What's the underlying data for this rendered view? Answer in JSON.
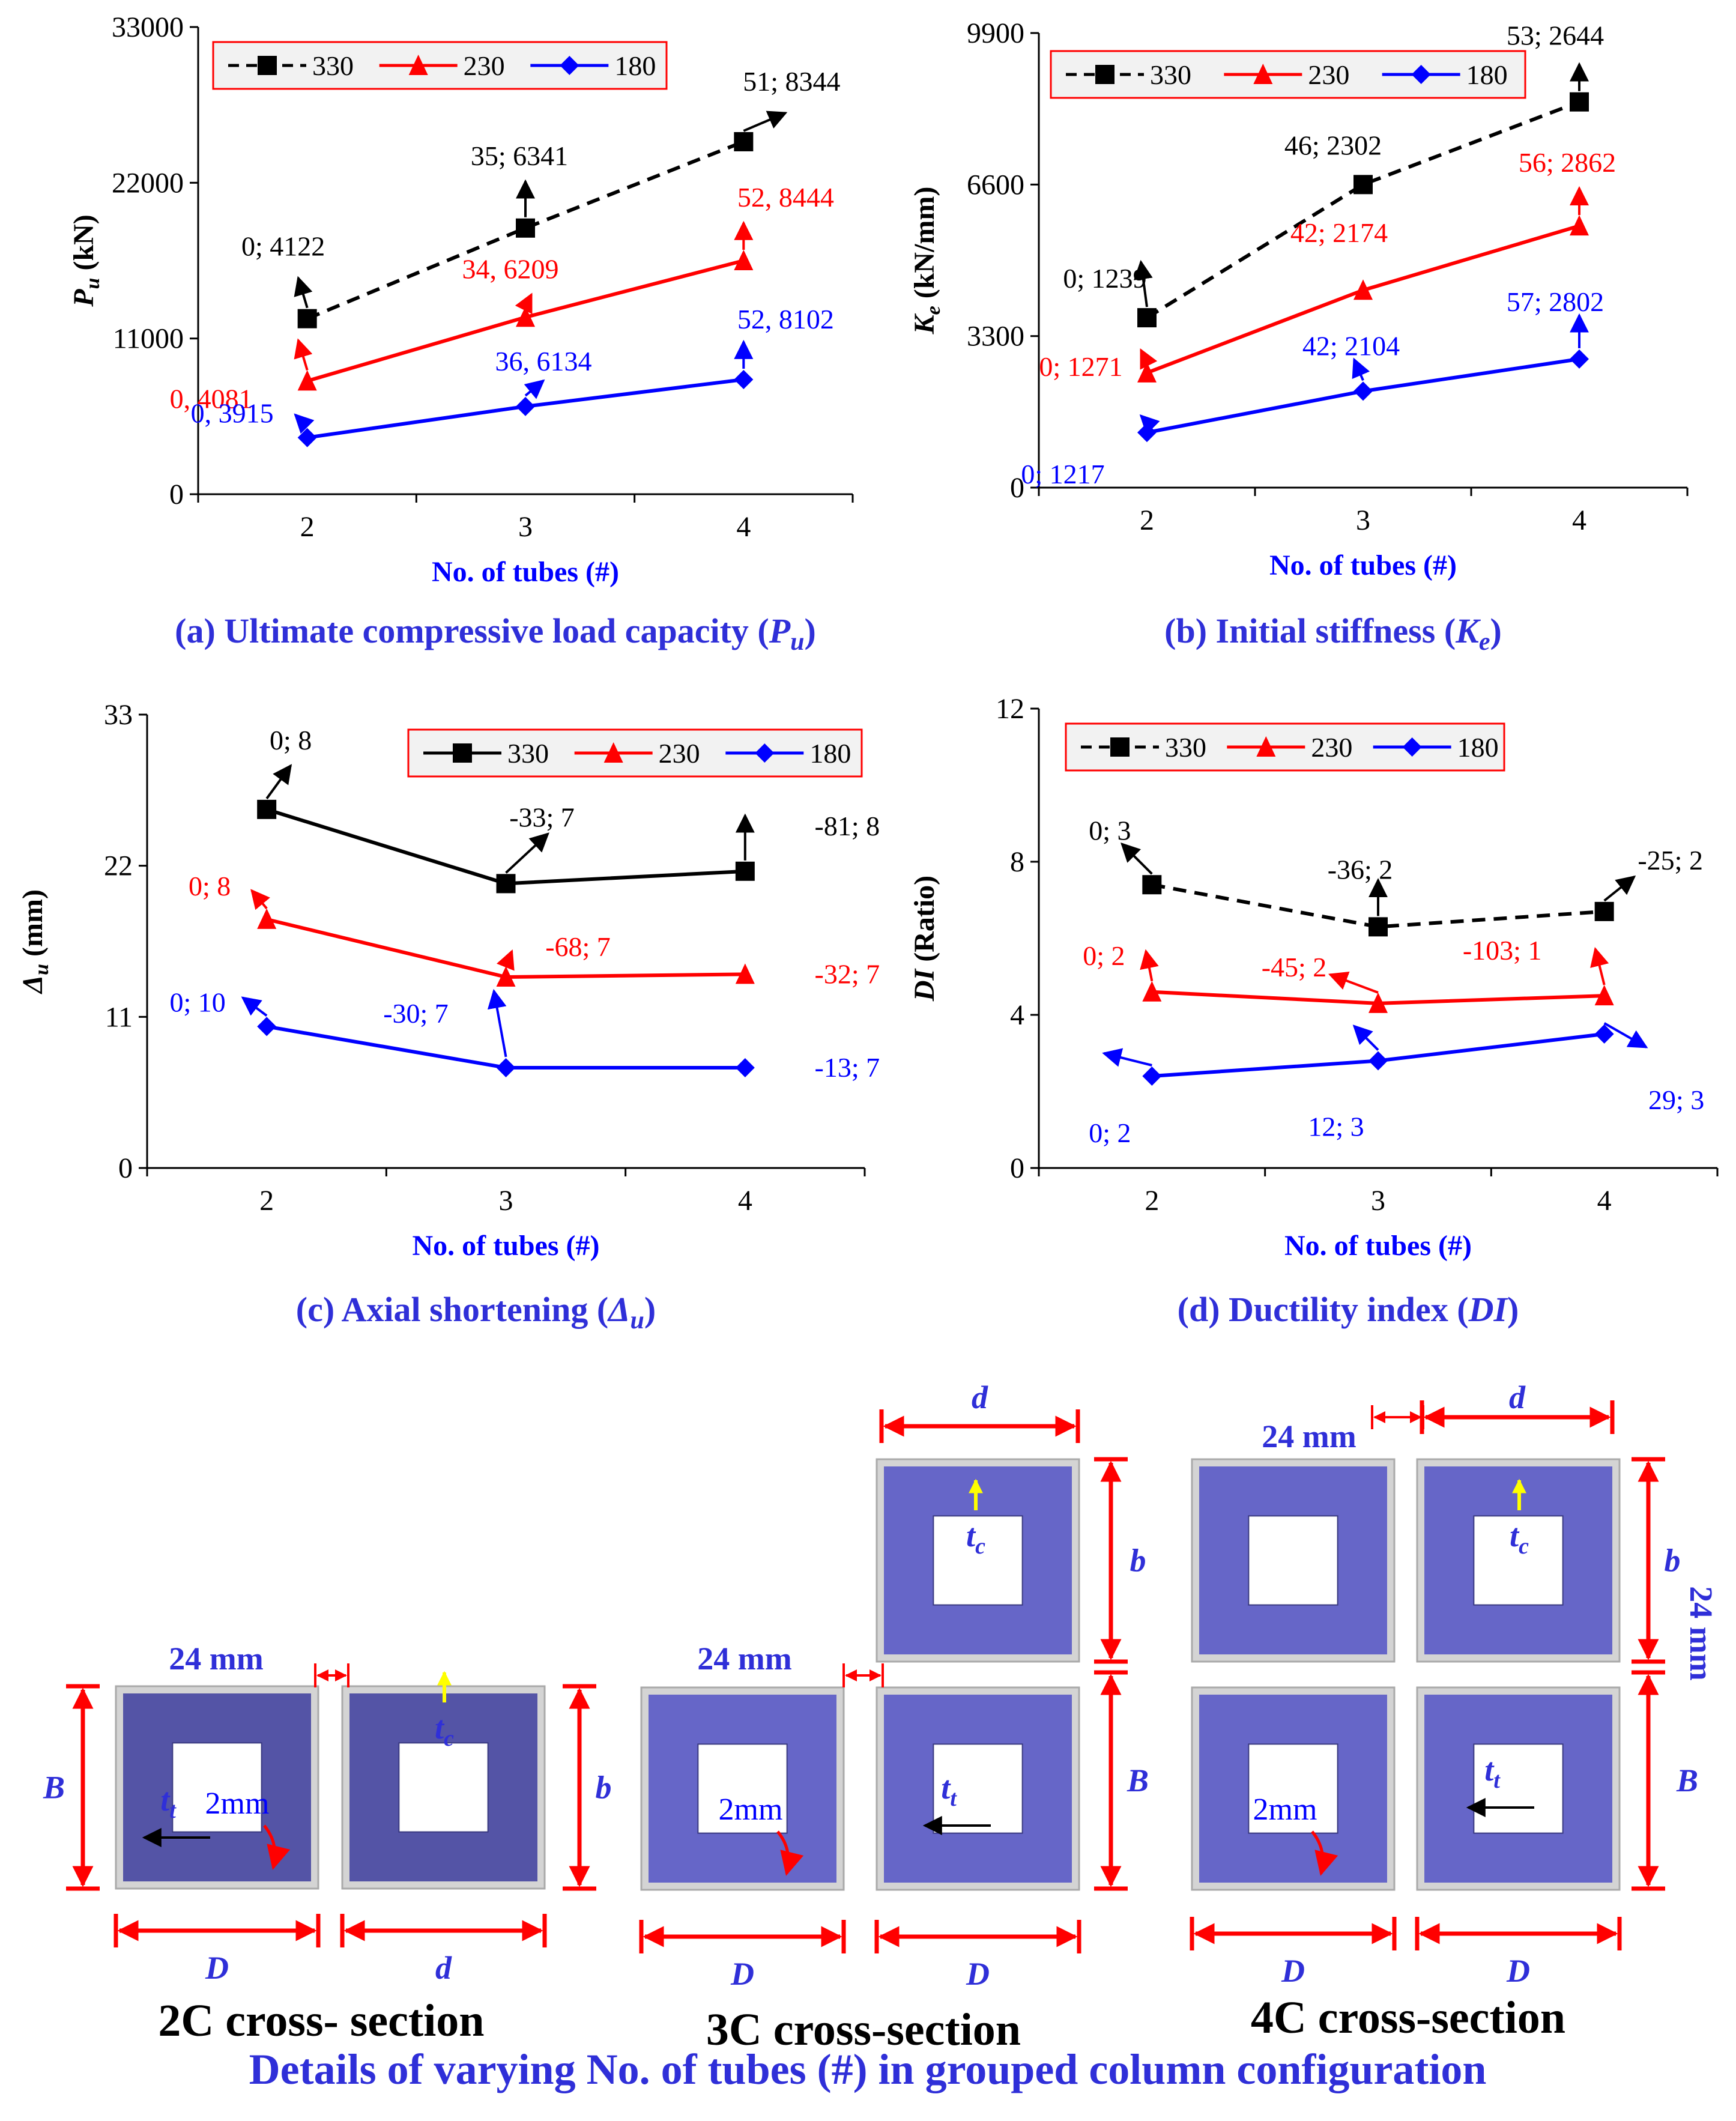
{
  "charts": [
    {
      "key": "a",
      "type": "line",
      "ylabel_main": "P",
      "ylabel_sub": "u",
      "ylabel_unit": " (kN)",
      "xlabel": "No. of tubes (#)",
      "caption_pre": "(a) Ultimate compressive load capacity (",
      "caption_var": "P",
      "caption_sub": "u",
      "caption_post": ")",
      "categories": [
        2,
        3,
        4
      ],
      "xlim": [
        1.5,
        4.5
      ],
      "ylim": [
        0,
        33000
      ],
      "yticks": [
        "0",
        "11000",
        "22000",
        "33000"
      ],
      "ytick_values": [
        0,
        11000,
        22000,
        33000
      ],
      "series": [
        {
          "name": "330",
          "values": [
            12400,
            18800,
            24900
          ],
          "color": "#000000",
          "dashed": true,
          "marker": "square",
          "labels": [
            "0; 4122",
            "35; 6341",
            "51; 8344"
          ]
        },
        {
          "name": "230",
          "values": [
            8000,
            12500,
            16500
          ],
          "color": "#ff0000",
          "dashed": false,
          "marker": "triangle",
          "labels": [
            "0, 4081",
            "34, 6209",
            "52, 8444"
          ]
        },
        {
          "name": "180",
          "values": [
            4000,
            6200,
            8100
          ],
          "color": "#0000ff",
          "dashed": false,
          "marker": "diamond",
          "labels": [
            "0, 3915",
            "36, 6134",
            "52, 8102"
          ]
        }
      ]
    },
    {
      "key": "b",
      "type": "line",
      "ylabel_main": "K",
      "ylabel_sub": "e",
      "ylabel_unit": " (kN/mm)",
      "xlabel": "No. of tubes (#)",
      "caption_pre": "(b) Initial stiffness (",
      "caption_var": "K",
      "caption_sub": "e",
      "caption_post": ")",
      "categories": [
        2,
        3,
        4
      ],
      "xlim": [
        1.5,
        4.5
      ],
      "ylim": [
        0,
        9900
      ],
      "yticks": [
        "0",
        "3300",
        "6600",
        "9900"
      ],
      "ytick_values": [
        0,
        3300,
        6600,
        9900
      ],
      "series": [
        {
          "name": "330",
          "values": [
            3700,
            6600,
            8400
          ],
          "color": "#000000",
          "dashed": true,
          "marker": "square",
          "labels": [
            "0; 1239",
            "46; 2302",
            "53; 2644"
          ]
        },
        {
          "name": "230",
          "values": [
            2500,
            4300,
            5700
          ],
          "color": "#ff0000",
          "dashed": false,
          "marker": "triangle",
          "labels": [
            "0; 1271",
            "42; 2174",
            "56; 2862"
          ]
        },
        {
          "name": "180",
          "values": [
            1200,
            2100,
            2800
          ],
          "color": "#0000ff",
          "dashed": false,
          "marker": "diamond",
          "labels": [
            "0; 1217",
            "42; 2104",
            "57; 2802"
          ]
        }
      ]
    },
    {
      "key": "c",
      "type": "line",
      "ylabel_main": "Δ",
      "ylabel_sub": "u",
      "ylabel_unit": " (mm)",
      "xlabel": "No. of tubes (#)",
      "caption_pre": "(c) Axial shortening (",
      "caption_var": "Δ",
      "caption_sub": "u",
      "caption_post": ")",
      "categories": [
        2,
        3,
        4
      ],
      "xlim": [
        1.5,
        4.5
      ],
      "ylim": [
        0,
        33
      ],
      "yticks": [
        "0",
        "11",
        "22",
        "33"
      ],
      "ytick_values": [
        0,
        11,
        22,
        33
      ],
      "series": [
        {
          "name": "330",
          "values": [
            26.1,
            20.7,
            21.6
          ],
          "color": "#000000",
          "dashed": false,
          "marker": "square",
          "labels": [
            "0; 8",
            "-33; 7",
            "-81; 8"
          ]
        },
        {
          "name": "230",
          "values": [
            18.1,
            13.9,
            14.1
          ],
          "color": "#ff0000",
          "dashed": false,
          "marker": "triangle",
          "labels": [
            "0; 8",
            "-68; 7",
            "-32; 7"
          ]
        },
        {
          "name": "180",
          "values": [
            10.3,
            7.3,
            7.3
          ],
          "color": "#0000ff",
          "dashed": false,
          "marker": "diamond",
          "labels": [
            "0; 10",
            "-30; 7",
            "-13; 7"
          ]
        }
      ]
    },
    {
      "key": "d",
      "type": "line",
      "ylabel_main": "DI",
      "ylabel_sub": "",
      "ylabel_unit": " (Ratio)",
      "xlabel": "No. of tubes (#)",
      "caption_pre": "(d) Ductility index (",
      "caption_var": "DI",
      "caption_sub": "",
      "caption_post": ")",
      "categories": [
        2,
        3,
        4
      ],
      "xlim": [
        1.5,
        4.5
      ],
      "ylim": [
        0,
        12
      ],
      "yticks": [
        "0",
        "4",
        "8",
        "12"
      ],
      "ytick_values": [
        0,
        4,
        8,
        12
      ],
      "series": [
        {
          "name": "330",
          "values": [
            7.4,
            6.3,
            6.7
          ],
          "color": "#000000",
          "dashed": true,
          "marker": "square",
          "labels": [
            "0; 3",
            "-36; 2",
            "-25; 2"
          ]
        },
        {
          "name": "230",
          "values": [
            4.6,
            4.3,
            4.5
          ],
          "color": "#ff0000",
          "dashed": false,
          "marker": "triangle",
          "labels": [
            "0; 2",
            "-45; 2",
            "-103; 1"
          ]
        },
        {
          "name": "180",
          "values": [
            2.4,
            2.8,
            3.5
          ],
          "color": "#0000ff",
          "dashed": false,
          "marker": "diamond",
          "labels": [
            "0; 2",
            "12; 3",
            "29; 3"
          ]
        }
      ]
    }
  ],
  "diagram": {
    "spacing_label": "24 mm",
    "thickness_label": "2mm",
    "dim_D": "D",
    "dim_d": "d",
    "dim_B": "B",
    "dim_b": "b",
    "t_main": "t",
    "t_sub_c": "c",
    "t_sub_t": "t",
    "sections": [
      "2C cross- section",
      "3C cross-section",
      "4C cross-section"
    ],
    "footer": "Details of varying No. of tubes (#) in grouped column configuration"
  },
  "colors": {
    "black": "#000000",
    "red": "#ff0000",
    "blue": "#0000ff",
    "caption_blue": "#2f2fd8",
    "tube_fill": "#6666c8",
    "tube_dark": "#5454a6",
    "outer_fill": "#d4d4d4",
    "arrow_yellow": "#ffff00",
    "legend_bg": "#f2f2f2"
  }
}
